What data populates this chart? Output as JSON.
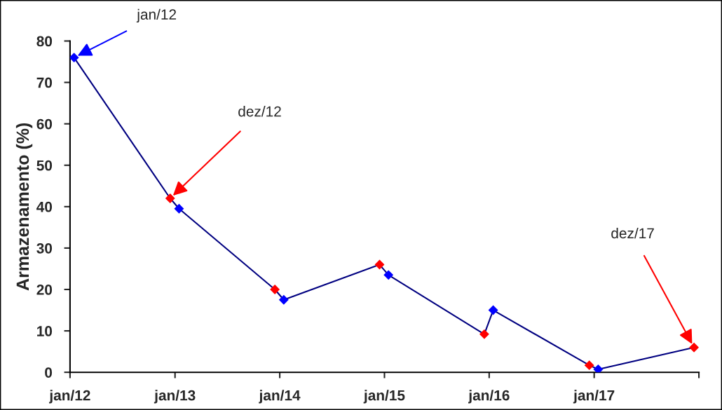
{
  "chart_data": {
    "type": "line",
    "ylabel": "Armazenamento (%)",
    "x": [
      "2012-01-15",
      "2012-12-15",
      "2013-01-15",
      "2013-12-15",
      "2014-01-15",
      "2014-12-15",
      "2015-01-15",
      "2015-12-15",
      "2016-01-15",
      "2016-12-15",
      "2017-01-15",
      "2017-12-15"
    ],
    "series": [
      {
        "color": "#000080",
        "values": [
          76,
          42,
          39.5,
          20,
          17.5,
          26,
          23.5,
          9.2,
          15,
          1.7,
          0.7,
          6
        ],
        "colors": [
          "#0000ff",
          "#ff0000",
          "#0000ff",
          "#ff0000",
          "#0000ff",
          "#ff0000",
          "#0000ff",
          "#ff0000",
          "#0000ff",
          "#ff0000",
          "#0000ff",
          "#ff0000"
        ]
      }
    ],
    "marker": "diamond",
    "line_style": "solid",
    "grid": false,
    "legend": false,
    "xlim": [
      "2012-01-01",
      "2018-01-01"
    ],
    "xticks": [
      {
        "value": "2012-01-01",
        "label": "jan/12"
      },
      {
        "value": "2013-01-01",
        "label": "jan/13"
      },
      {
        "value": "2014-01-01",
        "label": "jan/14"
      },
      {
        "value": "2015-01-01",
        "label": "jan/15"
      },
      {
        "value": "2016-01-01",
        "label": "jan/16"
      },
      {
        "value": "2017-01-01",
        "label": "jan/17"
      },
      {
        "value": "2018-01-01",
        "label": null
      }
    ],
    "ylim": [
      0,
      80
    ],
    "yticks": [
      0,
      10,
      20,
      30,
      40,
      50,
      60,
      70,
      80
    ],
    "annotations": [
      {
        "text": "jan/12",
        "x": "2012-01-15",
        "y": 76
      },
      {
        "text": "dez/12",
        "x": "2012-12-15",
        "y": 42
      },
      {
        "text": "dez/17",
        "x": "2017-12-15",
        "y": 6
      }
    ]
  }
}
